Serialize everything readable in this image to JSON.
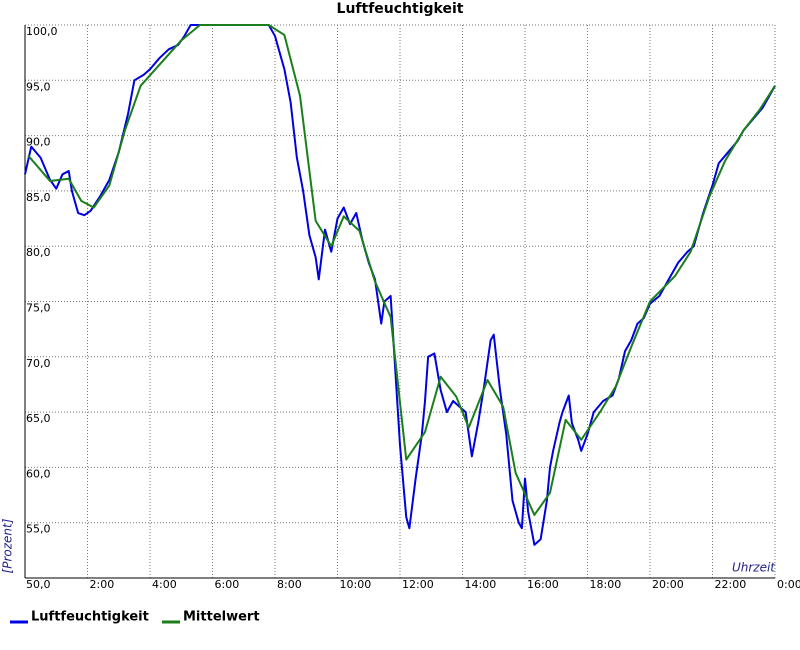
{
  "chart_data": {
    "type": "line",
    "title": "Luftfeuchtigkeit",
    "x_label": "Uhrzeit",
    "y_label": "[Prozent]",
    "xlim": [
      0,
      24
    ],
    "ylim": [
      50,
      100
    ],
    "xticks": [
      {
        "value": 2,
        "label": "2:00"
      },
      {
        "value": 4,
        "label": "4:00"
      },
      {
        "value": 6,
        "label": "6:00"
      },
      {
        "value": 8,
        "label": "8:00"
      },
      {
        "value": 10,
        "label": "10:00"
      },
      {
        "value": 12,
        "label": "12:00"
      },
      {
        "value": 14,
        "label": "14:00"
      },
      {
        "value": 16,
        "label": "16:00"
      },
      {
        "value": 18,
        "label": "18:00"
      },
      {
        "value": 20,
        "label": "20:00"
      },
      {
        "value": 22,
        "label": "22:00"
      },
      {
        "value": 24,
        "label": "0:00"
      }
    ],
    "yticks": [
      {
        "value": 50,
        "label": "50,0"
      },
      {
        "value": 55,
        "label": "55,0"
      },
      {
        "value": 60,
        "label": "60,0"
      },
      {
        "value": 65,
        "label": "65,0"
      },
      {
        "value": 70,
        "label": "70,0"
      },
      {
        "value": 75,
        "label": "75,0"
      },
      {
        "value": 80,
        "label": "80,0"
      },
      {
        "value": 85,
        "label": "85,0"
      },
      {
        "value": 90,
        "label": "90,0"
      },
      {
        "value": 95,
        "label": "95,0"
      },
      {
        "value": 100,
        "label": "100,0"
      }
    ],
    "grid": true,
    "series": [
      {
        "name": "Luftfeuchtigkeit",
        "color": "#0000e0",
        "x": [
          0,
          0.2,
          0.5,
          0.8,
          1.0,
          1.2,
          1.4,
          1.5,
          1.7,
          1.9,
          2.1,
          2.4,
          2.7,
          3.0,
          3.3,
          3.5,
          3.8,
          4.0,
          4.3,
          4.6,
          4.9,
          5.1,
          5.3,
          6.0,
          7.0,
          7.8,
          8.0,
          8.3,
          8.5,
          8.7,
          8.9,
          9.1,
          9.3,
          9.4,
          9.6,
          9.8,
          10.0,
          10.2,
          10.4,
          10.6,
          10.8,
          11.0,
          11.2,
          11.4,
          11.5,
          11.7,
          11.8,
          12.0,
          12.2,
          12.3,
          12.5,
          12.7,
          12.8,
          12.9,
          13.1,
          13.3,
          13.5,
          13.7,
          13.9,
          14.1,
          14.3,
          14.5,
          14.7,
          14.9,
          15.0,
          15.2,
          15.4,
          15.5,
          15.6,
          15.8,
          15.9,
          16.0,
          16.1,
          16.3,
          16.5,
          16.7,
          16.8,
          16.9,
          17.1,
          17.2,
          17.4,
          17.5,
          17.7,
          17.8,
          18.0,
          18.2,
          18.5,
          18.8,
          19.0,
          19.2,
          19.4,
          19.6,
          19.8,
          20.0,
          20.3,
          20.6,
          20.9,
          21.2,
          21.4,
          21.7,
          22.0,
          22.2,
          22.5,
          22.8,
          23.0,
          23.3,
          23.6,
          23.9,
          24.0
        ],
        "values": [
          86.5,
          89,
          88,
          86,
          85.2,
          86.5,
          86.8,
          85,
          83,
          82.8,
          83.2,
          84.5,
          86,
          88.5,
          92,
          95,
          95.5,
          96,
          97,
          97.8,
          98.2,
          99,
          100,
          100,
          100,
          100,
          99,
          96,
          93,
          88,
          85,
          81,
          79,
          77,
          81.5,
          79.5,
          82.5,
          83.5,
          82,
          83,
          80.5,
          78.5,
          77,
          73,
          75,
          75.5,
          71,
          62,
          55.5,
          54.5,
          59,
          63,
          66,
          70,
          70.3,
          67,
          65,
          66,
          65.5,
          65,
          61,
          64,
          67.5,
          71.5,
          72,
          67,
          63,
          60,
          57,
          55,
          54.5,
          59,
          56,
          53,
          53.5,
          57,
          60,
          61.5,
          64,
          65,
          66.5,
          64,
          62.5,
          61.5,
          63,
          65,
          66,
          66.5,
          68,
          70.5,
          71.5,
          73,
          73.5,
          74.8,
          75.5,
          77,
          78.5,
          79.5,
          80,
          83,
          85.5,
          87.5,
          88.5,
          89.5,
          90.5,
          91.5,
          92.5,
          94,
          94.5
        ]
      },
      {
        "name": "Mittelwert",
        "color": "#1a7f1a",
        "x": [
          0.1,
          0.8,
          1.4,
          1.8,
          2.2,
          2.7,
          3.2,
          3.7,
          4.3,
          5.0,
          5.6,
          7.8,
          8.3,
          8.8,
          9.3,
          9.8,
          10.2,
          10.7,
          11.2,
          11.7,
          12.2,
          12.8,
          13.3,
          13.8,
          14.2,
          14.8,
          15.3,
          15.7,
          16.3,
          16.8,
          17.3,
          17.8,
          18.4,
          18.9,
          19.4,
          20.0,
          20.8,
          21.3,
          21.9,
          22.4,
          23.0,
          23.5,
          24.0
        ],
        "values": [
          88.2,
          85.9,
          86.1,
          84.1,
          83.5,
          85.5,
          90.5,
          94.5,
          96.4,
          98.6,
          100,
          100,
          99.1,
          93.6,
          82.3,
          80,
          82.7,
          81.4,
          76.8,
          73.6,
          60.7,
          63.2,
          68.2,
          66.4,
          63.6,
          67.9,
          65.5,
          59.5,
          55.7,
          57.7,
          64.3,
          62.5,
          65,
          67.3,
          70.9,
          75,
          77.3,
          79.5,
          84.5,
          87.7,
          90.5,
          92.3,
          94.5
        ]
      }
    ]
  }
}
